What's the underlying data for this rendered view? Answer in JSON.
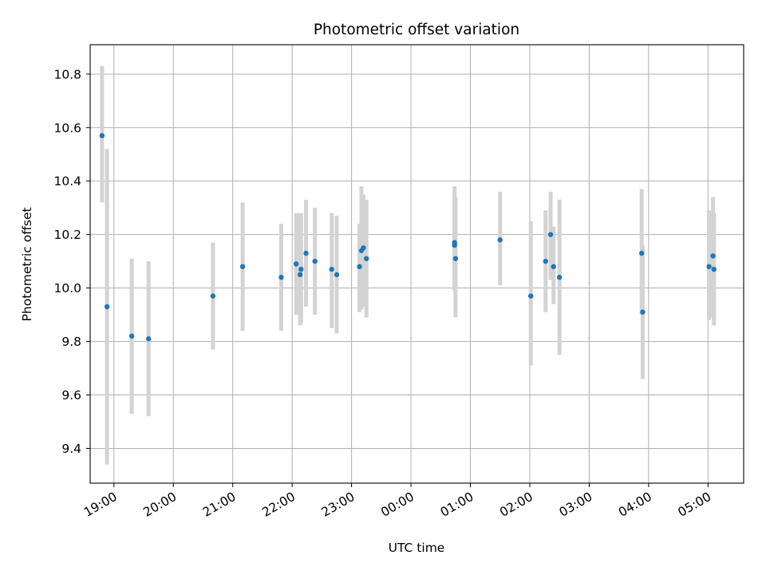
{
  "chart_data": {
    "type": "scatter",
    "title": "Photometric offset variation",
    "xlabel": "UTC time",
    "ylabel": "Photometric offset",
    "x_axis_kind": "time",
    "xlim": [
      "18:36",
      "05:36"
    ],
    "ylim": [
      9.27,
      10.91
    ],
    "grid": true,
    "marker_color": "#1f77b4",
    "errorbar_color": "#d3d3d3",
    "x_ticks": [
      "19:00",
      "20:00",
      "21:00",
      "22:00",
      "23:00",
      "00:00",
      "01:00",
      "02:00",
      "03:00",
      "04:00",
      "05:00"
    ],
    "y_ticks": [
      9.4,
      9.6,
      9.8,
      10.0,
      10.2,
      10.4,
      10.6,
      10.8
    ],
    "series": [
      {
        "points": [
          {
            "x": "18:48",
            "y": 10.57,
            "ylow": 10.32,
            "yhigh": 10.83
          },
          {
            "x": "18:53",
            "y": 9.93,
            "ylow": 9.34,
            "yhigh": 10.52
          },
          {
            "x": "19:18",
            "y": 9.82,
            "ylow": 9.53,
            "yhigh": 10.11
          },
          {
            "x": "19:35",
            "y": 9.81,
            "ylow": 9.52,
            "yhigh": 10.1
          },
          {
            "x": "20:40",
            "y": 9.97,
            "ylow": 9.77,
            "yhigh": 10.17
          },
          {
            "x": "21:10",
            "y": 10.08,
            "ylow": 9.84,
            "yhigh": 10.32
          },
          {
            "x": "21:49",
            "y": 10.04,
            "ylow": 9.84,
            "yhigh": 10.24
          },
          {
            "x": "22:04",
            "y": 10.09,
            "ylow": 9.9,
            "yhigh": 10.28
          },
          {
            "x": "22:08",
            "y": 10.05,
            "ylow": 9.86,
            "yhigh": 10.28
          },
          {
            "x": "22:09",
            "y": 10.07,
            "ylow": 9.87,
            "yhigh": 10.28
          },
          {
            "x": "22:14",
            "y": 10.13,
            "ylow": 9.93,
            "yhigh": 10.33
          },
          {
            "x": "22:23",
            "y": 10.1,
            "ylow": 9.9,
            "yhigh": 10.3
          },
          {
            "x": "22:40",
            "y": 10.07,
            "ylow": 9.85,
            "yhigh": 10.28
          },
          {
            "x": "22:45",
            "y": 10.05,
            "ylow": 9.83,
            "yhigh": 10.27
          },
          {
            "x": "23:08",
            "y": 10.08,
            "ylow": 9.91,
            "yhigh": 10.24
          },
          {
            "x": "23:10",
            "y": 10.14,
            "ylow": 9.92,
            "yhigh": 10.38
          },
          {
            "x": "23:12",
            "y": 10.15,
            "ylow": 9.93,
            "yhigh": 10.35
          },
          {
            "x": "23:15",
            "y": 10.11,
            "ylow": 9.89,
            "yhigh": 10.33
          },
          {
            "x": "00:44",
            "y": 10.17,
            "ylow": 10.0,
            "yhigh": 10.38
          },
          {
            "x": "00:44",
            "y": 10.16,
            "ylow": 9.99,
            "yhigh": 10.34
          },
          {
            "x": "00:45",
            "y": 10.11,
            "ylow": 9.89,
            "yhigh": 10.34
          },
          {
            "x": "01:30",
            "y": 10.18,
            "ylow": 10.01,
            "yhigh": 10.36
          },
          {
            "x": "02:01",
            "y": 9.97,
            "ylow": 9.71,
            "yhigh": 10.25
          },
          {
            "x": "02:16",
            "y": 10.1,
            "ylow": 9.91,
            "yhigh": 10.29
          },
          {
            "x": "02:21",
            "y": 10.2,
            "ylow": 10.03,
            "yhigh": 10.36
          },
          {
            "x": "02:24",
            "y": 10.08,
            "ylow": 9.94,
            "yhigh": 10.23
          },
          {
            "x": "02:30",
            "y": 10.04,
            "ylow": 9.75,
            "yhigh": 10.33
          },
          {
            "x": "03:53",
            "y": 10.13,
            "ylow": 9.9,
            "yhigh": 10.37
          },
          {
            "x": "03:54",
            "y": 9.91,
            "ylow": 9.66,
            "yhigh": 10.16
          },
          {
            "x": "05:01",
            "y": 10.08,
            "ylow": 9.88,
            "yhigh": 10.29
          },
          {
            "x": "05:05",
            "y": 10.12,
            "ylow": 9.89,
            "yhigh": 10.34
          },
          {
            "x": "05:06",
            "y": 10.07,
            "ylow": 9.86,
            "yhigh": 10.28
          }
        ]
      }
    ]
  }
}
